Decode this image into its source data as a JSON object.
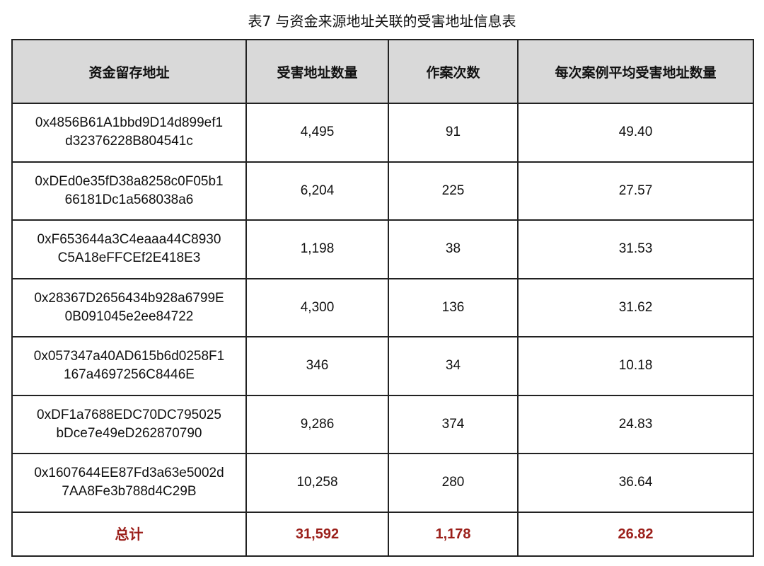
{
  "title": "表7 与资金来源地址关联的受害地址信息表",
  "colors": {
    "header_bg": "#d9d9d9",
    "total_text": "#9b1f1a"
  },
  "table": {
    "headers": [
      "资金留存地址",
      "受害地址数量",
      "作案次数",
      "每次案例平均受害地址数量"
    ],
    "rows": [
      {
        "addr_line1": "0x4856B61A1bbd9D14d899ef1",
        "addr_line2": "d32376228B804541c",
        "victims": "4,495",
        "cases": "91",
        "avg": "49.40"
      },
      {
        "addr_line1": "0xDEd0e35fD38a8258c0F05b1",
        "addr_line2": "66181Dc1a568038a6",
        "victims": "6,204",
        "cases": "225",
        "avg": "27.57"
      },
      {
        "addr_line1": "0xF653644a3C4eaaa44C8930",
        "addr_line2": "C5A18eFFCEf2E418E3",
        "victims": "1,198",
        "cases": "38",
        "avg": "31.53"
      },
      {
        "addr_line1": "0x28367D2656434b928a6799E",
        "addr_line2": "0B091045e2ee84722",
        "victims": "4,300",
        "cases": "136",
        "avg": "31.62"
      },
      {
        "addr_line1": "0x057347a40AD615b6d0258F1",
        "addr_line2": "167a4697256C8446E",
        "victims": "346",
        "cases": "34",
        "avg": "10.18"
      },
      {
        "addr_line1": "0xDF1a7688EDC70DC795025",
        "addr_line2": "bDce7e49eD262870790",
        "victims": "9,286",
        "cases": "374",
        "avg": "24.83"
      },
      {
        "addr_line1": "0x1607644EE87Fd3a63e5002d",
        "addr_line2": "7AA8Fe3b788d4C29B",
        "victims": "10,258",
        "cases": "280",
        "avg": "36.64"
      }
    ],
    "total": {
      "label": "总计",
      "victims": "31,592",
      "cases": "1,178",
      "avg": "26.82"
    }
  }
}
